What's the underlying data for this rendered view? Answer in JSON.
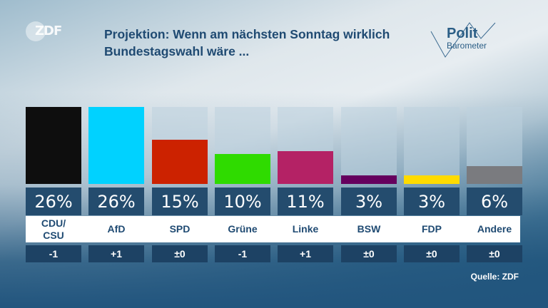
{
  "header": {
    "title_line1": "Projektion: Wenn am nächsten Sonntag wirklich",
    "title_line2": "Bundestagswahl wäre ...",
    "logo_text": "ZDF",
    "brand_line1": "Polit",
    "brand_line2": "Barometer"
  },
  "source": "Quelle: ZDF",
  "chart_data": {
    "type": "bar",
    "title": "Projektion: Wenn am nächsten Sonntag wirklich Bundestagswahl wäre ...",
    "xlabel": "",
    "ylabel": "",
    "ylim": [
      0,
      26
    ],
    "categories": [
      "CDU/\nCSU",
      "AfD",
      "SPD",
      "Grüne",
      "Linke",
      "BSW",
      "FDP",
      "Andere"
    ],
    "values": [
      26,
      26,
      15,
      10,
      11,
      3,
      3,
      6
    ],
    "value_labels": [
      "26%",
      "26%",
      "15%",
      "10%",
      "11%",
      "3%",
      "3%",
      "6%"
    ],
    "changes": [
      "-1",
      "+1",
      "±0",
      "-1",
      "+1",
      "±0",
      "±0",
      "±0"
    ],
    "colors": [
      "#0e0e0e",
      "#00d2ff",
      "#cc2200",
      "#2fdb00",
      "#b42265",
      "#65005e",
      "#ffdb00",
      "#7a7b7f"
    ],
    "grid": false,
    "legend": "none"
  }
}
